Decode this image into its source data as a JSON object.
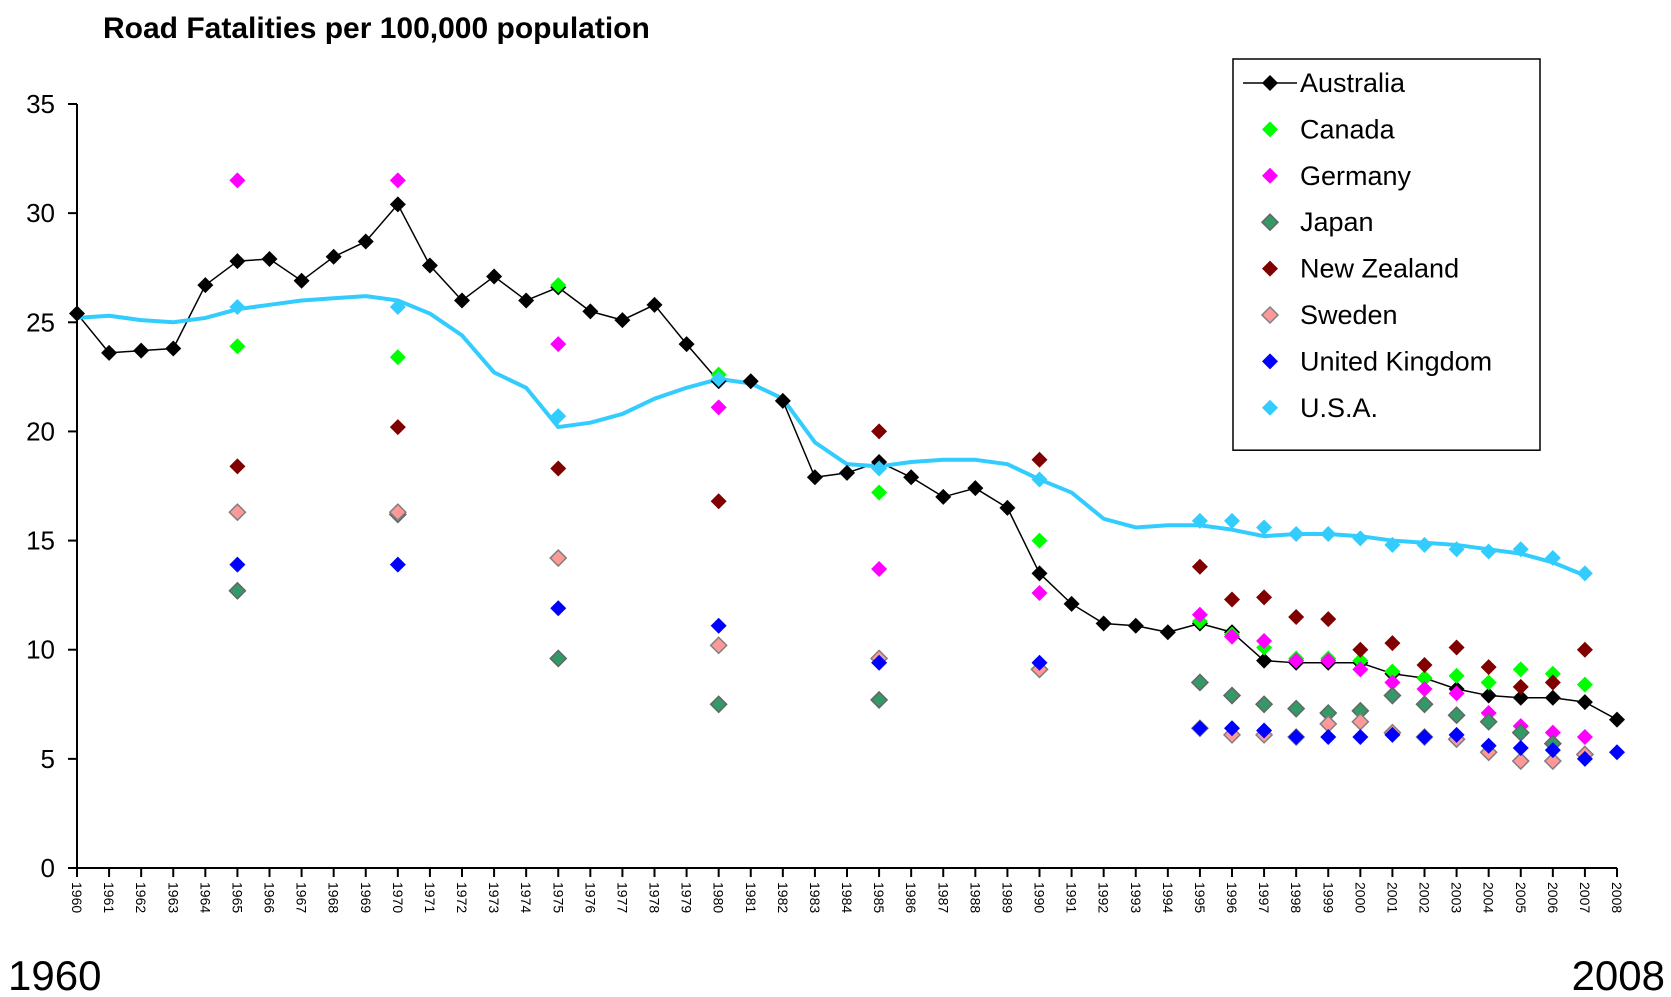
{
  "chart_data": {
    "type": "line",
    "title": "Road Fatalities per 100,000 population",
    "footer_left": "1960",
    "footer_right": "2008",
    "x": [
      1960,
      1961,
      1962,
      1963,
      1964,
      1965,
      1966,
      1967,
      1968,
      1969,
      1970,
      1971,
      1972,
      1973,
      1974,
      1975,
      1976,
      1977,
      1978,
      1979,
      1980,
      1981,
      1982,
      1983,
      1984,
      1985,
      1986,
      1987,
      1988,
      1989,
      1990,
      1991,
      1992,
      1993,
      1994,
      1995,
      1996,
      1997,
      1998,
      1999,
      2000,
      2001,
      2002,
      2003,
      2004,
      2005,
      2006,
      2007,
      2008
    ],
    "xlim": [
      1960,
      2008
    ],
    "xticks": [
      1960,
      1961,
      1962,
      1963,
      1964,
      1965,
      1966,
      1967,
      1968,
      1969,
      1970,
      1971,
      1972,
      1973,
      1974,
      1975,
      1976,
      1977,
      1978,
      1979,
      1980,
      1981,
      1982,
      1983,
      1984,
      1985,
      1986,
      1987,
      1988,
      1989,
      1990,
      1991,
      1992,
      1993,
      1994,
      1995,
      1996,
      1997,
      1998,
      1999,
      2000,
      2001,
      2002,
      2003,
      2004,
      2005,
      2006,
      2007,
      2008
    ],
    "ylim": [
      0,
      35
    ],
    "yticks": [
      0,
      5,
      10,
      15,
      20,
      25,
      30,
      35
    ],
    "legend": "upper right",
    "series": [
      {
        "name": "Australia",
        "color": "#000000",
        "line": true,
        "markers": true,
        "line_width": 1.5,
        "values": [
          25.4,
          23.6,
          23.7,
          23.8,
          26.7,
          27.8,
          27.9,
          26.9,
          28.0,
          28.7,
          30.4,
          27.6,
          26.0,
          27.1,
          26.0,
          26.6,
          25.5,
          25.1,
          25.8,
          24.0,
          22.3,
          22.3,
          21.4,
          17.9,
          18.1,
          18.6,
          17.9,
          17.0,
          17.4,
          16.5,
          13.5,
          12.1,
          11.2,
          11.1,
          10.8,
          11.2,
          10.8,
          9.5,
          9.4,
          9.4,
          9.4,
          8.9,
          8.7,
          8.2,
          7.9,
          7.8,
          7.8,
          7.6,
          6.8
        ]
      },
      {
        "name": "Canada",
        "color": "#00ff00",
        "line": false,
        "markers": true,
        "values": [
          null,
          null,
          null,
          null,
          null,
          23.9,
          null,
          null,
          null,
          null,
          23.4,
          null,
          null,
          null,
          null,
          26.7,
          null,
          null,
          null,
          null,
          22.6,
          null,
          null,
          null,
          null,
          17.2,
          null,
          null,
          null,
          null,
          15.0,
          null,
          null,
          null,
          null,
          11.3,
          10.7,
          10.1,
          9.6,
          9.6,
          9.5,
          9.0,
          8.7,
          8.8,
          8.5,
          9.1,
          8.9,
          8.4,
          null
        ]
      },
      {
        "name": "Germany",
        "color": "#ff00ff",
        "line": false,
        "markers": true,
        "values": [
          null,
          null,
          null,
          null,
          null,
          31.5,
          null,
          null,
          null,
          null,
          31.5,
          null,
          null,
          null,
          null,
          24.0,
          null,
          null,
          null,
          null,
          21.1,
          null,
          null,
          null,
          null,
          13.7,
          null,
          null,
          null,
          null,
          12.6,
          null,
          null,
          null,
          null,
          11.6,
          10.6,
          10.4,
          9.5,
          9.5,
          9.1,
          8.5,
          8.2,
          8.0,
          7.1,
          6.5,
          6.2,
          6.0,
          null
        ]
      },
      {
        "name": "Japan",
        "color": "#339966",
        "edgecolor": "#666666",
        "line": false,
        "markers": true,
        "values": [
          null,
          null,
          null,
          null,
          null,
          12.7,
          null,
          null,
          null,
          null,
          16.2,
          null,
          null,
          null,
          null,
          9.6,
          null,
          null,
          null,
          null,
          7.5,
          null,
          null,
          null,
          null,
          7.7,
          null,
          null,
          null,
          null,
          9.1,
          null,
          null,
          null,
          null,
          8.5,
          7.9,
          7.5,
          7.3,
          7.1,
          7.2,
          7.9,
          7.5,
          7.0,
          6.7,
          6.2,
          5.7,
          5.2,
          null
        ]
      },
      {
        "name": "New Zealand",
        "color": "#800000",
        "line": false,
        "markers": true,
        "values": [
          null,
          null,
          null,
          null,
          null,
          18.4,
          null,
          null,
          null,
          null,
          20.2,
          null,
          null,
          null,
          null,
          18.3,
          null,
          null,
          null,
          null,
          16.8,
          null,
          null,
          null,
          null,
          20.0,
          null,
          null,
          null,
          null,
          18.7,
          null,
          null,
          null,
          null,
          13.8,
          12.3,
          12.4,
          11.5,
          11.4,
          10.0,
          10.3,
          9.3,
          10.1,
          9.2,
          8.3,
          8.5,
          10.0,
          null
        ]
      },
      {
        "name": "Sweden",
        "color": "#ff9999",
        "edgecolor": "#808080",
        "line": false,
        "markers": true,
        "values": [
          null,
          null,
          null,
          null,
          null,
          16.3,
          null,
          null,
          null,
          null,
          16.3,
          null,
          null,
          null,
          null,
          14.2,
          null,
          null,
          null,
          null,
          10.2,
          null,
          null,
          null,
          null,
          9.6,
          null,
          null,
          null,
          null,
          9.1,
          null,
          null,
          null,
          null,
          6.4,
          6.1,
          6.1,
          6.0,
          6.6,
          6.7,
          6.2,
          6.0,
          5.9,
          5.3,
          4.9,
          4.9,
          5.2,
          null
        ]
      },
      {
        "name": "United Kingdom",
        "color": "#0000ff",
        "line": false,
        "markers": true,
        "values": [
          null,
          null,
          null,
          null,
          null,
          13.9,
          null,
          null,
          null,
          null,
          13.9,
          null,
          null,
          null,
          null,
          11.9,
          null,
          null,
          null,
          null,
          11.1,
          null,
          null,
          null,
          null,
          9.4,
          null,
          null,
          null,
          null,
          9.4,
          null,
          null,
          null,
          null,
          6.4,
          6.4,
          6.3,
          6.0,
          6.0,
          6.0,
          6.1,
          6.0,
          6.1,
          5.6,
          5.5,
          5.4,
          5.0,
          5.3
        ]
      },
      {
        "name": "U.S.A.",
        "color": "#33ccff",
        "line": false,
        "markers": true,
        "values": [
          null,
          null,
          null,
          null,
          null,
          25.7,
          null,
          null,
          null,
          null,
          25.7,
          null,
          null,
          null,
          null,
          20.7,
          null,
          null,
          null,
          null,
          22.4,
          null,
          null,
          null,
          null,
          18.3,
          null,
          null,
          null,
          null,
          17.8,
          null,
          null,
          null,
          null,
          15.9,
          15.9,
          15.6,
          15.3,
          15.3,
          15.1,
          14.8,
          14.8,
          14.6,
          14.5,
          14.6,
          14.2,
          13.5,
          null
        ]
      },
      {
        "color": "#33ccff",
        "line": true,
        "markers": false,
        "line_width": 4,
        "values": [
          25.2,
          25.3,
          25.1,
          25.0,
          25.2,
          25.6,
          25.8,
          26.0,
          26.1,
          26.2,
          26.0,
          25.4,
          24.4,
          22.7,
          22.0,
          20.2,
          20.4,
          20.8,
          21.5,
          22.0,
          22.4,
          22.2,
          21.5,
          19.5,
          18.5,
          18.4,
          18.6,
          18.7,
          18.7,
          18.5,
          17.8,
          17.2,
          16.0,
          15.6,
          15.7,
          15.7,
          15.5,
          15.2,
          15.3,
          15.3,
          15.2,
          15.0,
          14.9,
          14.8,
          14.6,
          14.4,
          14.0,
          13.4,
          null
        ]
      }
    ]
  }
}
